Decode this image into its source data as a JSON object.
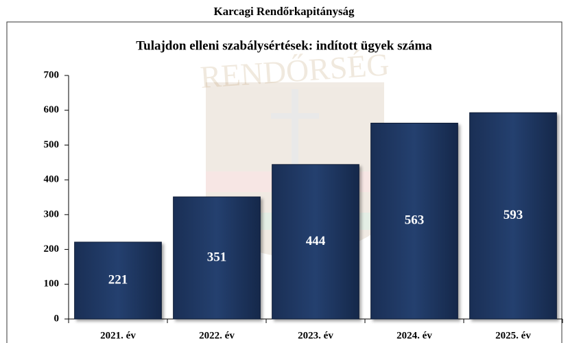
{
  "header": "Karcagi Rendőrkapitányság",
  "chart_data": {
    "type": "bar",
    "title": "Tulajdon elleni szabálysértések: indított ügyek száma",
    "watermark": "RENDŐRSÉG",
    "categories": [
      "2021. év",
      "2022. év",
      "2023. év",
      "2024. év",
      "2025. év"
    ],
    "values": [
      221,
      351,
      444,
      563,
      593
    ],
    "color": "#1f3864",
    "ylim": [
      0,
      700
    ],
    "yticks": [
      0,
      100,
      200,
      300,
      400,
      500,
      600,
      700
    ],
    "grid": false
  }
}
